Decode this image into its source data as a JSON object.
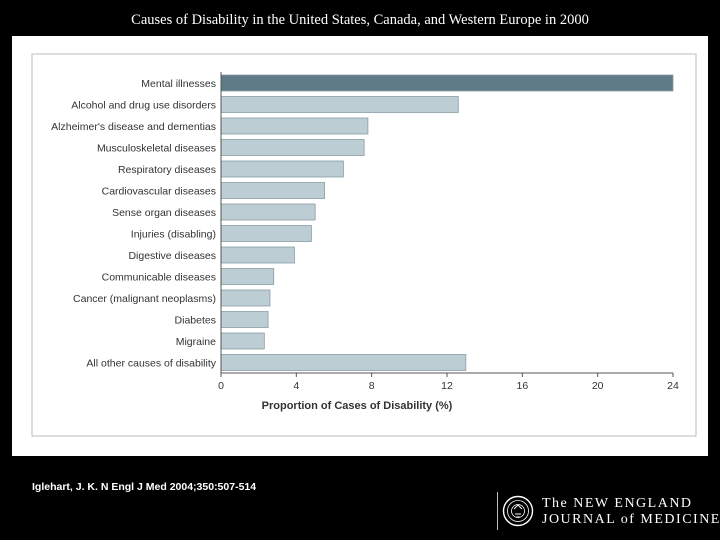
{
  "slide": {
    "title": "Causes of Disability in the United States, Canada, and Western Europe in 2000",
    "citation": "Iglehart, J. K. N Engl J Med 2004;350:507-514"
  },
  "journal": {
    "line1": "The NEW ENGLAND",
    "line2": "JOURNAL of MEDICINE"
  },
  "chart_data": {
    "type": "bar",
    "orientation": "horizontal",
    "categories": [
      "Mental illnesses",
      "Alcohol and drug use disorders",
      "Alzheimer's disease and dementias",
      "Musculoskeletal diseases",
      "Respiratory diseases",
      "Cardiovascular diseases",
      "Sense organ diseases",
      "Injuries (disabling)",
      "Digestive diseases",
      "Communicable diseases",
      "Cancer (malignant neoplasms)",
      "Diabetes",
      "Migraine",
      "All other causes of disability"
    ],
    "values": [
      24.0,
      12.6,
      7.8,
      7.6,
      6.5,
      5.5,
      5.0,
      4.8,
      3.9,
      2.8,
      2.6,
      2.5,
      2.3,
      13.0
    ],
    "xlabel": "Proportion of Cases of Disability (%)",
    "xlim": [
      0,
      24
    ],
    "xticks": [
      0,
      4,
      8,
      12,
      16,
      20,
      24
    ],
    "grid": false,
    "colors": {
      "highlight": "#5e7b87",
      "bar": "#bcced4",
      "bar_edge": "#8a9da4",
      "frame": "#bbbbbb"
    },
    "highlight_index": 0
  }
}
